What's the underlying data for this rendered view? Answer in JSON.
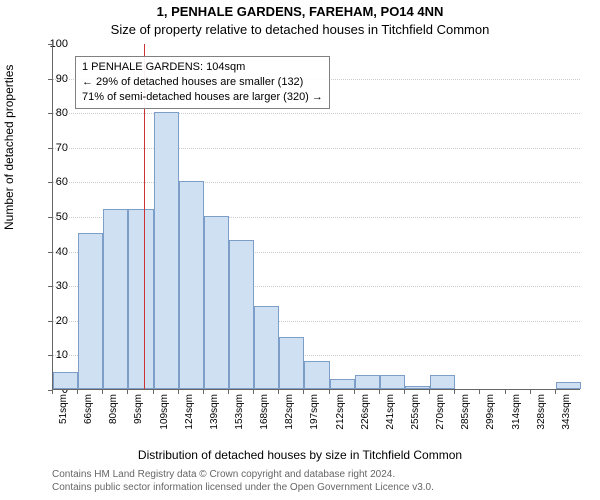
{
  "titles": {
    "line1": "1, PENHALE GARDENS, FAREHAM, PO14 4NN",
    "line2": "Size of property relative to detached houses in Titchfield Common"
  },
  "axes": {
    "ylabel": "Number of detached properties",
    "xlabel": "Distribution of detached houses by size in Titchfield Common",
    "ylim": [
      0,
      100
    ],
    "ytick_step": 10,
    "grid_color": "#cccccc",
    "axis_color": "#666666"
  },
  "chart": {
    "type": "histogram",
    "bar_fill": "#cfe0f3",
    "bar_stroke": "#7c9ec9",
    "bar_stroke_width": 1,
    "background_color": "#ffffff",
    "categories": [
      "51sqm",
      "66sqm",
      "80sqm",
      "95sqm",
      "109sqm",
      "124sqm",
      "139sqm",
      "153sqm",
      "168sqm",
      "182sqm",
      "197sqm",
      "212sqm",
      "226sqm",
      "241sqm",
      "255sqm",
      "270sqm",
      "285sqm",
      "299sqm",
      "314sqm",
      "328sqm",
      "343sqm"
    ],
    "values": [
      5,
      45,
      52,
      52,
      80,
      60,
      50,
      43,
      24,
      15,
      8,
      3,
      4,
      4,
      1,
      4,
      0,
      0,
      0,
      0,
      2
    ]
  },
  "reference_line": {
    "position_sqm": 104,
    "color": "#cc3333",
    "width": 1
  },
  "annotation": {
    "lines": [
      "1 PENHALE GARDENS: 104sqm",
      "← 29% of detached houses are smaller (132)",
      "71% of semi-detached houses are larger (320) →"
    ],
    "border_color": "#808080"
  },
  "footnote": {
    "line1": "Contains HM Land Registry data © Crown copyright and database right 2024.",
    "line2": "Contains public sector information licensed under the Open Government Licence v3.0.",
    "color": "#666666"
  },
  "fonts": {
    "title_size": 13,
    "body_size": 12,
    "tick_size": 11,
    "xtick_size": 10,
    "foot_size": 10
  }
}
